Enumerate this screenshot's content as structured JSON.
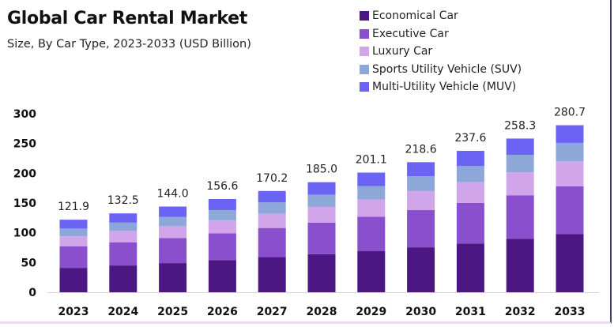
{
  "chart_data": {
    "type": "bar",
    "stacked": true,
    "title": "Global Car Rental Market",
    "subtitle": "Size, By Car Type, 2023-2033 (USD Billion)",
    "xlabel": "",
    "ylabel": "",
    "ylim": [
      0,
      300
    ],
    "yticks": [
      0,
      50,
      100,
      150,
      200,
      250,
      300
    ],
    "grid": false,
    "legend_position": "top-right",
    "categories": [
      "2023",
      "2024",
      "2025",
      "2026",
      "2027",
      "2028",
      "2029",
      "2030",
      "2031",
      "2032",
      "2033"
    ],
    "totals": [
      121.9,
      132.5,
      144.0,
      156.6,
      170.2,
      185.0,
      201.1,
      218.6,
      237.6,
      258.3,
      280.7
    ],
    "total_labels": [
      "121.9",
      "132.5",
      "144.0",
      "156.6",
      "170.2",
      "185.0",
      "201.1",
      "218.6",
      "237.6",
      "258.3",
      "280.7"
    ],
    "series": [
      {
        "name": "Economical Car",
        "color": "#4b1782",
        "values": [
          41.0,
          45.0,
          49.0,
          54.0,
          59.0,
          64.0,
          69.5,
          75.5,
          82.0,
          90.0,
          98.0
        ]
      },
      {
        "name": "Executive Car",
        "color": "#8a4fcc",
        "values": [
          36.0,
          39.0,
          42.0,
          45.0,
          49.0,
          53.0,
          57.5,
          62.5,
          68.0,
          73.0,
          80.0
        ]
      },
      {
        "name": "Luxury Car",
        "color": "#d1a5ea",
        "values": [
          17.0,
          19.0,
          20.0,
          22.0,
          24.0,
          26.5,
          29.0,
          32.0,
          35.0,
          38.5,
          42.0
        ]
      },
      {
        "name": "Sports Utility Vehicle (SUV)",
        "color": "#8ea7d9",
        "values": [
          13.0,
          14.0,
          15.5,
          17.0,
          19.0,
          20.5,
          22.5,
          25.0,
          27.0,
          29.5,
          31.0
        ]
      },
      {
        "name": "Multi-Utility Vehicle (MUV)",
        "color": "#6a63f3",
        "values": [
          14.9,
          15.5,
          17.5,
          18.6,
          19.2,
          21.0,
          22.6,
          23.6,
          25.6,
          27.3,
          29.7
        ]
      }
    ]
  }
}
